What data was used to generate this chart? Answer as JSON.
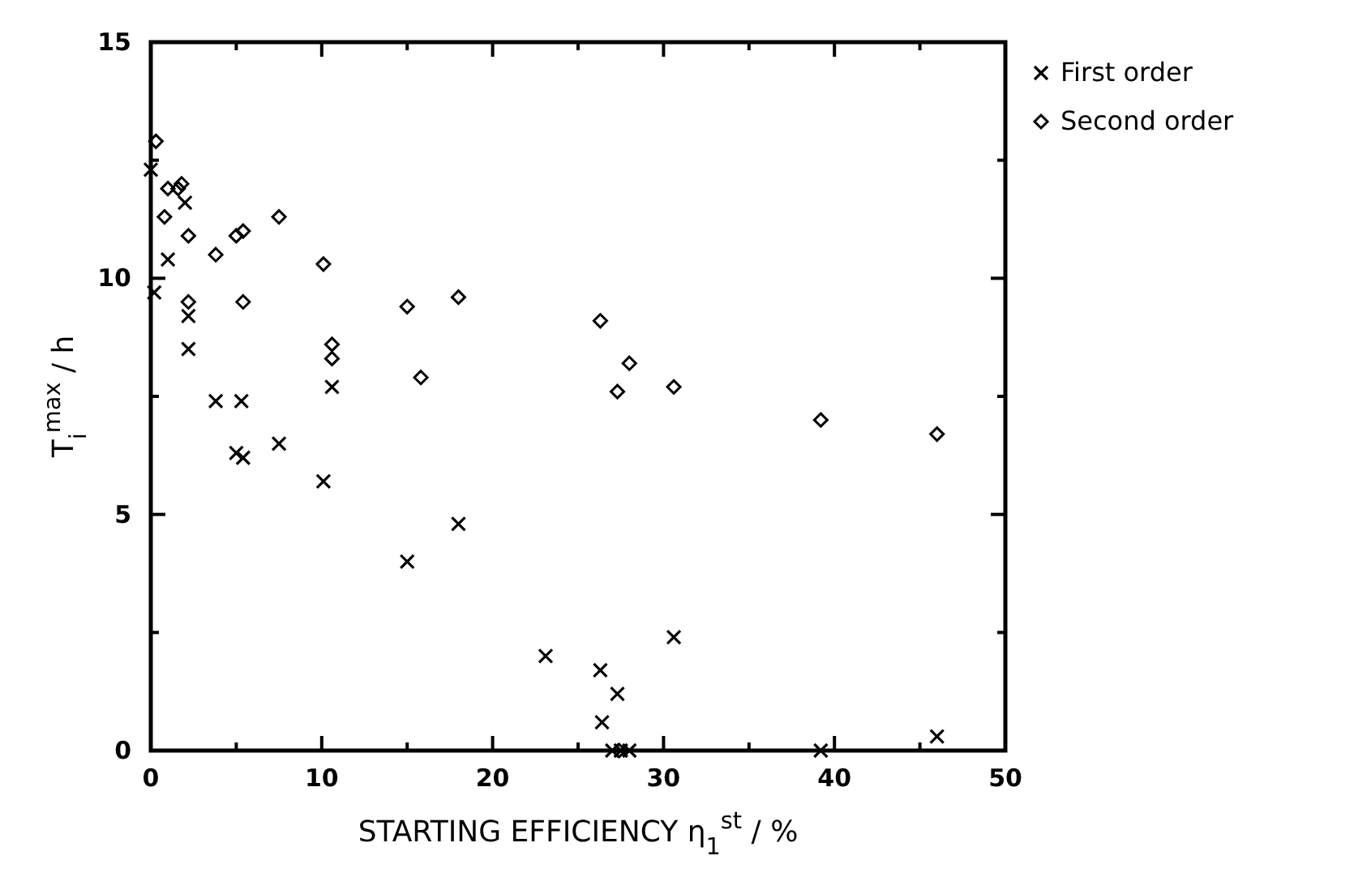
{
  "chart_data": {
    "type": "scatter",
    "xlabel": "STARTING EFFICIENCY η$_{1}$$^{st}$ / %",
    "ylabel": "T$_{i}$$^{max}$ / h",
    "xlim": [
      0,
      50
    ],
    "ylim": [
      0,
      15
    ],
    "xticks": [
      0,
      {
        "value": 5,
        "label": null
      },
      10,
      {
        "value": 15,
        "label": null
      },
      20,
      {
        "value": 25,
        "label": null
      },
      30,
      {
        "value": 35,
        "label": null
      },
      40,
      {
        "value": 45,
        "label": null
      },
      50
    ],
    "yticks": [
      0,
      {
        "value": 2.5,
        "label": null
      },
      5,
      {
        "value": 7.5,
        "label": null
      },
      10,
      {
        "value": 12.5,
        "label": null
      },
      15
    ],
    "grid": false,
    "legend": "top right",
    "series": [
      {
        "name": "First order",
        "color": "#000000",
        "marker": "cross",
        "x": [
          0,
          0.2,
          1,
          2,
          2.2,
          2.2,
          3.8,
          5,
          5.3,
          5.4,
          7.5,
          10.1,
          10.6,
          15,
          18,
          23.1,
          26.3,
          26.4,
          27.3,
          27,
          27.5,
          28,
          30.6,
          39.2,
          46
        ],
        "values": [
          12.3,
          9.7,
          10.4,
          11.6,
          9.2,
          8.5,
          7.4,
          6.3,
          7.4,
          6.2,
          6.5,
          5.7,
          7.7,
          4.0,
          4.8,
          2.0,
          1.7,
          0.6,
          1.2,
          0,
          0,
          0,
          2.4,
          0,
          0.3
        ]
      },
      {
        "name": "Second order",
        "color": "#000000",
        "marker": "diamond",
        "x": [
          0.3,
          0.8,
          1,
          1.8,
          1.6,
          2.2,
          2.2,
          3.8,
          5,
          5.4,
          5.4,
          7.5,
          10.1,
          10.6,
          10.6,
          15,
          15.8,
          18,
          26.3,
          27.3,
          28,
          30.6,
          39.2,
          46,
          27.4
        ],
        "values": [
          12.9,
          11.3,
          11.9,
          12.0,
          11.9,
          10.9,
          9.5,
          10.5,
          10.9,
          11.0,
          9.5,
          11.3,
          10.3,
          8.6,
          8.3,
          9.4,
          7.9,
          9.6,
          9.1,
          7.6,
          8.2,
          7.7,
          7.0,
          6.7,
          0
        ]
      }
    ]
  }
}
